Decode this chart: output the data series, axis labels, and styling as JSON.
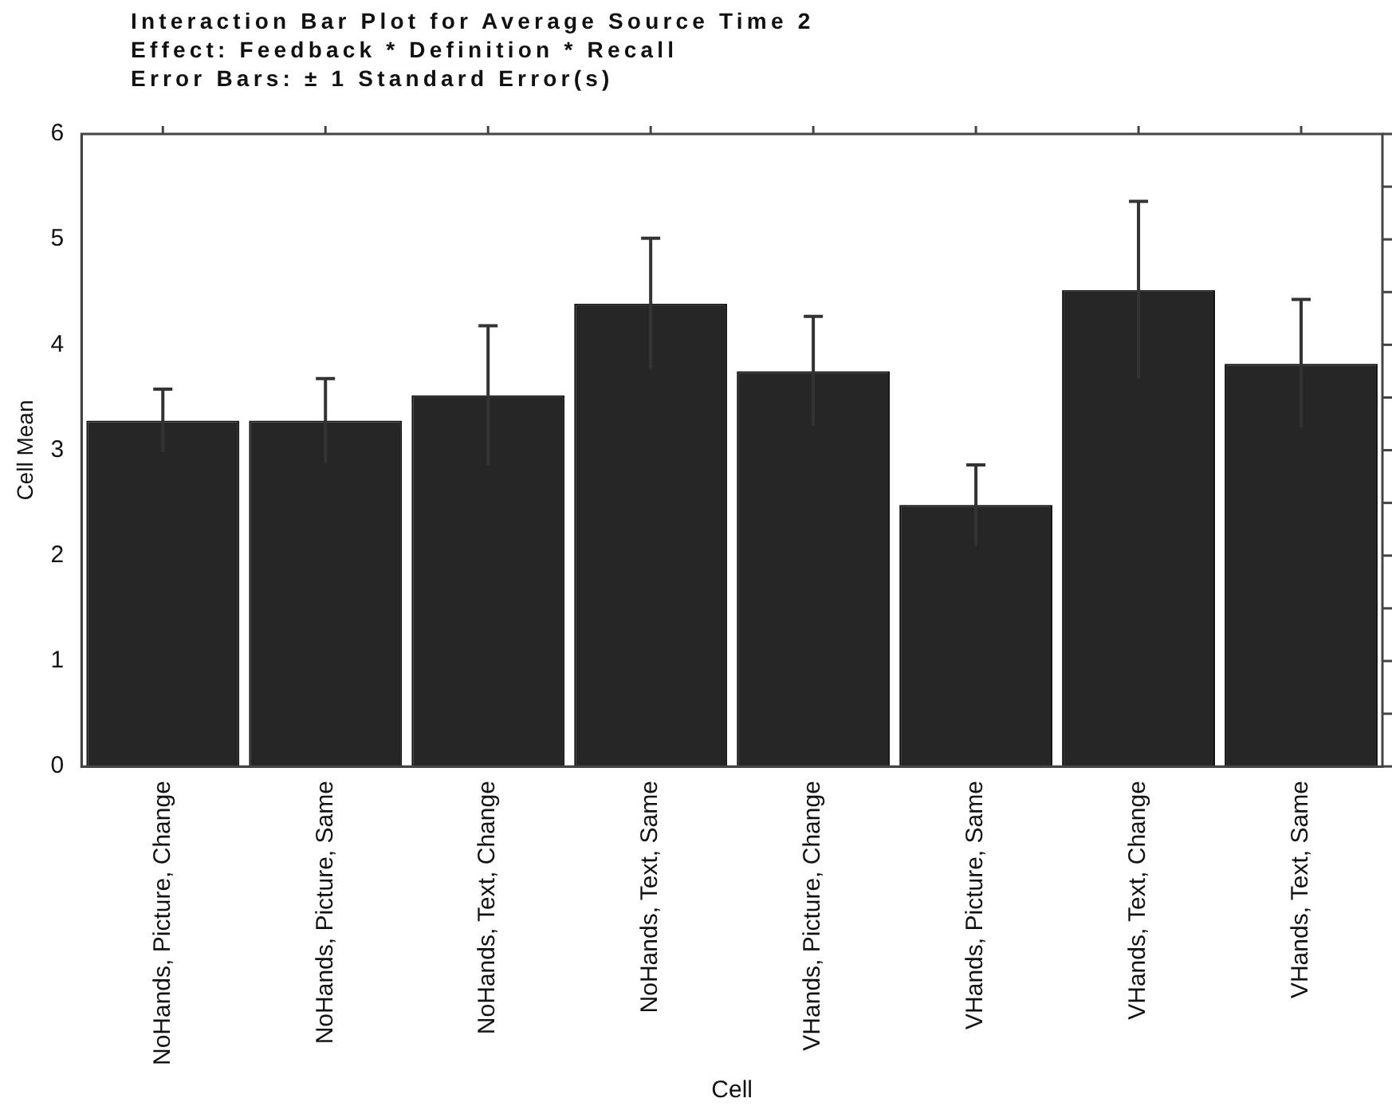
{
  "chart_data": {
    "type": "bar",
    "title": "Interaction Bar Plot for Average Source Time 2",
    "subtitle": "Effect: Feedback * Definition * Recall",
    "annotations": [
      "Error Bars: ± 1 Standard Error(s)"
    ],
    "xlabel": "Cell",
    "ylabel": "Cell Mean",
    "categories": [
      "NoHands, Picture, Change",
      "NoHands, Picture, Same",
      "NoHands, Text, Change",
      "NoHands, Text, Same",
      "VHands, Picture, Change",
      "VHands, Picture, Same",
      "VHands, Text, Change",
      "VHands, Text, Same"
    ],
    "values": [
      3.28,
      3.28,
      3.52,
      4.39,
      3.75,
      2.48,
      4.52,
      3.82
    ],
    "errors": [
      0.3,
      0.4,
      0.66,
      0.62,
      0.52,
      0.38,
      0.84,
      0.61
    ],
    "color": "#262626",
    "ylim": [
      0,
      6
    ],
    "yticks": [
      0,
      {
        "value": 0.5,
        "label": null
      },
      1,
      {
        "value": 1.5,
        "label": null
      },
      2,
      {
        "value": 2.5,
        "label": null
      },
      3,
      {
        "value": 3.5,
        "label": null
      },
      4,
      {
        "value": 4.5,
        "label": null
      },
      5,
      {
        "value": 5.5,
        "label": null
      },
      6
    ],
    "grid": false,
    "legend": false
  }
}
